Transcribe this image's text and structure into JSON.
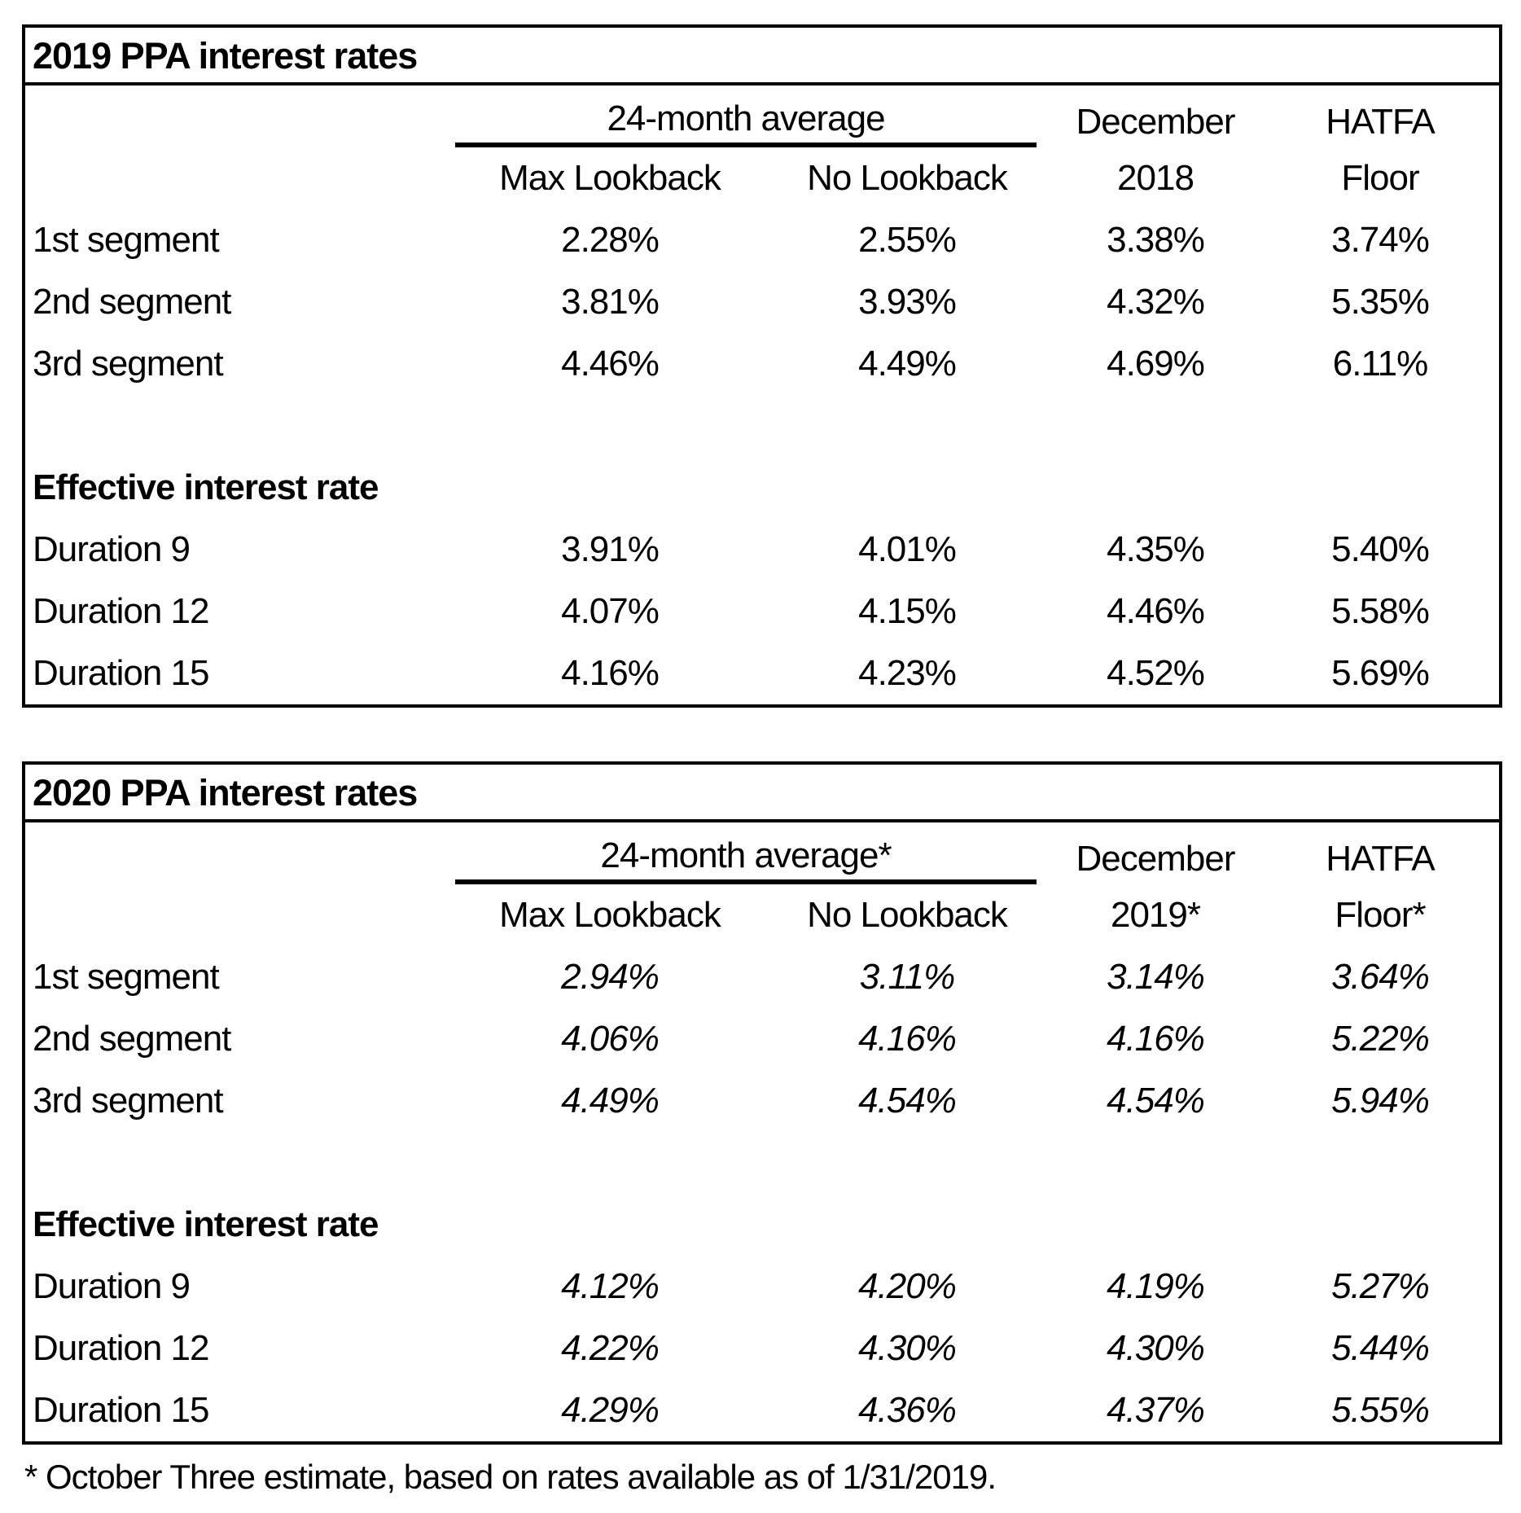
{
  "footnote": "* October Three estimate, based on rates available as of 1/31/2019.",
  "tables": [
    {
      "title": "2019 PPA interest rates",
      "group_header": "24-month average",
      "headers": {
        "max_lookback": "Max Lookback",
        "no_lookback": "No Lookback",
        "december_line1": "December",
        "december_line2": "2018",
        "hatfa_line1": "HATFA",
        "hatfa_line2": "Floor"
      },
      "section_label": "Effective interest rate",
      "segment_rows": [
        {
          "label": "1st segment",
          "values": [
            "2.28%",
            "2.55%",
            "3.38%",
            "3.74%"
          ]
        },
        {
          "label": "2nd segment",
          "values": [
            "3.81%",
            "3.93%",
            "4.32%",
            "5.35%"
          ]
        },
        {
          "label": "3rd segment",
          "values": [
            "4.46%",
            "4.49%",
            "4.69%",
            "6.11%"
          ]
        }
      ],
      "duration_rows": [
        {
          "label": "Duration 9",
          "values": [
            "3.91%",
            "4.01%",
            "4.35%",
            "5.40%"
          ]
        },
        {
          "label": "Duration 12",
          "values": [
            "4.07%",
            "4.15%",
            "4.46%",
            "5.58%"
          ]
        },
        {
          "label": "Duration 15",
          "values": [
            "4.16%",
            "4.23%",
            "4.52%",
            "5.69%"
          ]
        }
      ]
    },
    {
      "title": "2020 PPA interest rates",
      "group_header": "24-month average*",
      "headers": {
        "max_lookback": "Max Lookback",
        "no_lookback": "No Lookback",
        "december_line1": "December",
        "december_line2": "2019*",
        "hatfa_line1": "HATFA",
        "hatfa_line2": "Floor*"
      },
      "section_label": "Effective interest rate",
      "segment_rows": [
        {
          "label": "1st segment",
          "values": [
            "2.94%",
            "3.11%",
            "3.14%",
            "3.64%"
          ]
        },
        {
          "label": "2nd segment",
          "values": [
            "4.06%",
            "4.16%",
            "4.16%",
            "5.22%"
          ]
        },
        {
          "label": "3rd segment",
          "values": [
            "4.49%",
            "4.54%",
            "4.54%",
            "5.94%"
          ]
        }
      ],
      "duration_rows": [
        {
          "label": "Duration 9",
          "values": [
            "4.12%",
            "4.20%",
            "4.19%",
            "5.27%"
          ]
        },
        {
          "label": "Duration 12",
          "values": [
            "4.22%",
            "4.30%",
            "4.30%",
            "5.44%"
          ]
        },
        {
          "label": "Duration 15",
          "values": [
            "4.29%",
            "4.36%",
            "4.37%",
            "5.55%"
          ]
        }
      ]
    }
  ]
}
